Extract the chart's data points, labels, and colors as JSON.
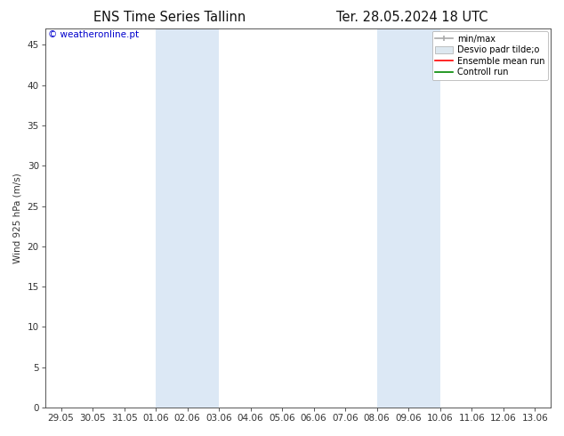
{
  "title_left": "ENS Time Series Tallinn",
  "title_right": "Ter. 28.05.2024 18 UTC",
  "ylabel": "Wind 925 hPa (m/s)",
  "watermark": "© weatheronline.pt",
  "watermark_color": "#0000cc",
  "background_color": "#ffffff",
  "plot_bg_color": "#ffffff",
  "shaded_regions": [
    {
      "xstart": 3.0,
      "xend": 5.0,
      "color": "#dce8f5"
    },
    {
      "xstart": 10.0,
      "xend": 12.0,
      "color": "#dce8f5"
    }
  ],
  "x_ticks_labels": [
    "29.05",
    "30.05",
    "31.05",
    "01.06",
    "02.06",
    "03.06",
    "04.06",
    "05.06",
    "06.06",
    "07.06",
    "08.06",
    "09.06",
    "10.06",
    "11.06",
    "12.06",
    "13.06"
  ],
  "x_ticks_values": [
    0,
    1,
    2,
    3,
    4,
    5,
    6,
    7,
    8,
    9,
    10,
    11,
    12,
    13,
    14,
    15
  ],
  "ylim": [
    0,
    47
  ],
  "xlim": [
    -0.5,
    15.5
  ],
  "yticks": [
    0,
    5,
    10,
    15,
    20,
    25,
    30,
    35,
    40,
    45
  ],
  "legend_minmax_color": "#aaaaaa",
  "legend_std_color": "#dde8f0",
  "legend_ensemble_color": "#ff0000",
  "legend_control_color": "#008800",
  "border_color": "#555555",
  "tick_color": "#333333",
  "font_size": 7.5,
  "title_fontsize": 10.5
}
